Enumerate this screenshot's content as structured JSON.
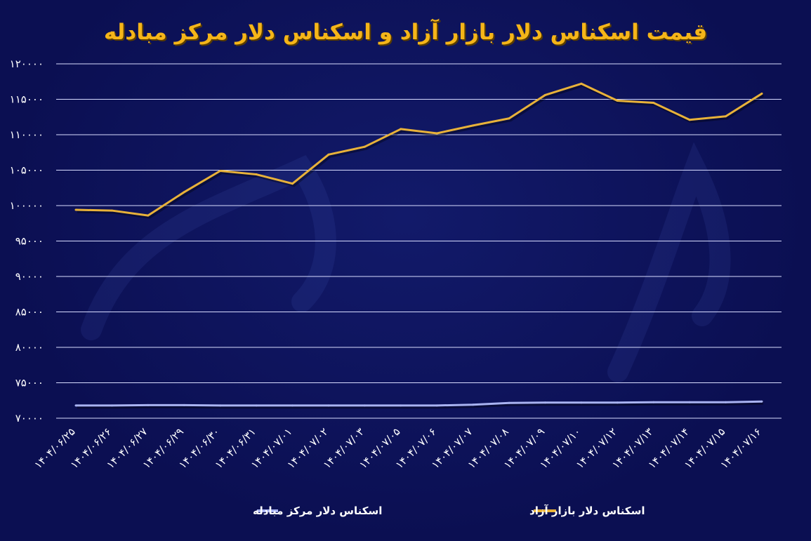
{
  "chart_data": {
    "type": "line",
    "title": "قیمت اسکناس دلار بازار آزاد و اسکناس دلار مرکز مبادله",
    "ylim": [
      70000,
      120000
    ],
    "yticks": [
      "۱۲۰۰۰۰",
      "۱۱۵۰۰۰",
      "۱۱۰۰۰۰",
      "۱۰۵۰۰۰",
      "۱۰۰۰۰۰",
      "۹۵۰۰۰",
      "۹۰۰۰۰",
      "۸۵۰۰۰",
      "۸۰۰۰۰",
      "۷۵۰۰۰",
      "۷۰۰۰۰"
    ],
    "ytick_values": [
      120000,
      115000,
      110000,
      105000,
      100000,
      95000,
      90000,
      85000,
      80000,
      75000,
      70000
    ],
    "categories": [
      "۱۴۰۴/۰۶/۲۵",
      "۱۴۰۴/۰۶/۲۶",
      "۱۴۰۴/۰۶/۲۷",
      "۱۴۰۴/۰۶/۲۹",
      "۱۴۰۴/۰۶/۳۰",
      "۱۴۰۴/۰۶/۳۱",
      "۱۴۰۴/۰۷/۰۱",
      "۱۴۰۴/۰۷/۰۲",
      "۱۴۰۴/۰۷/۰۳",
      "۱۴۰۴/۰۷/۰۵",
      "۱۴۰۴/۰۷/۰۶",
      "۱۴۰۴/۰۷/۰۷",
      "۱۴۰۴/۰۷/۰۸",
      "۱۴۰۴/۰۷/۰۹",
      "۱۴۰۴/۰۷/۱۰",
      "۱۴۰۴/۰۷/۱۲",
      "۱۴۰۴/۰۷/۱۳",
      "۱۴۰۴/۰۷/۱۴",
      "۱۴۰۴/۰۷/۱۵",
      "۱۴۰۴/۰۷/۱۶"
    ],
    "series": [
      {
        "name": "اسکناس دلار بازار آزاد",
        "color": "#e8b23a",
        "values": [
          99400,
          99300,
          98600,
          101900,
          104900,
          104400,
          103100,
          107200,
          108300,
          110800,
          110200,
          111300,
          112300,
          115600,
          117200,
          114800,
          114500,
          112100,
          112600,
          115800
        ]
      },
      {
        "name": "اسکناس دلار مرکز مبادله",
        "color": "#a9b3f2",
        "values": [
          71800,
          71800,
          71850,
          71850,
          71800,
          71800,
          71800,
          71800,
          71800,
          71800,
          71800,
          71900,
          72150,
          72200,
          72200,
          72200,
          72250,
          72250,
          72250,
          72350
        ]
      }
    ],
    "grid": true,
    "legend_position": "bottom"
  }
}
